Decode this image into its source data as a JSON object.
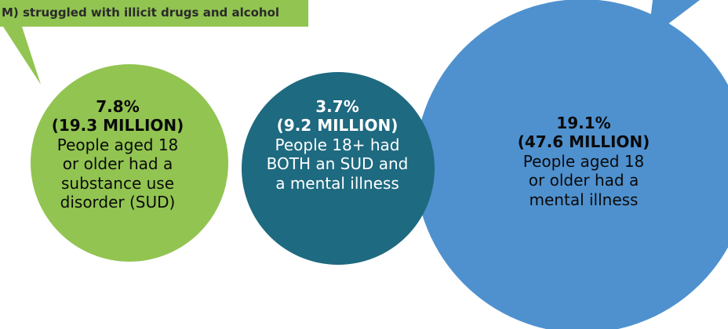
{
  "callout": {
    "text": "M) struggled with illicit drugs and alcohol"
  },
  "colors": {
    "sud_green": "#92c451",
    "both_teal": "#1e6a80",
    "mental_blue": "#4f91cf"
  },
  "circles": {
    "sud": {
      "percent": "7.8%",
      "count": "(19.3 MILLION)",
      "desc": [
        "People aged 18",
        "or older had a",
        "substance use",
        "disorder (SUD)"
      ]
    },
    "both": {
      "percent": "3.7%",
      "count": "(9.2 MILLION)",
      "desc": [
        "People 18+ had",
        "BOTH an SUD and",
        "a mental illness"
      ]
    },
    "mental_illness": {
      "percent": "19.1%",
      "count": "(47.6 MILLION)",
      "desc": [
        "People aged 18",
        "or older had a",
        "mental illness"
      ]
    }
  }
}
